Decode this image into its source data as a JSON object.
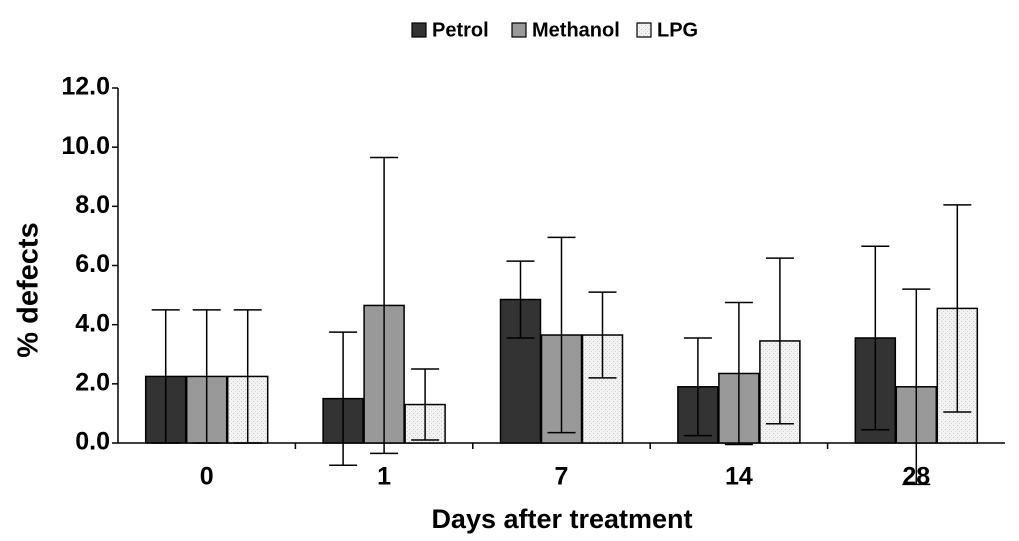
{
  "chart_data": {
    "type": "bar",
    "x_label": "Days after treatment",
    "y_label": "% defects",
    "categories": [
      "0",
      "1",
      "7",
      "14",
      "28"
    ],
    "series": [
      {
        "name": "Petrol",
        "color": "#333333",
        "values": [
          2.25,
          1.5,
          4.85,
          1.9,
          3.55
        ],
        "errors": [
          2.25,
          2.25,
          1.3,
          1.65,
          3.1
        ]
      },
      {
        "name": "Methanol",
        "color": "#999999",
        "values": [
          2.25,
          4.65,
          3.65,
          2.35,
          1.9
        ],
        "errors": [
          2.25,
          5.0,
          3.3,
          2.4,
          3.3
        ]
      },
      {
        "name": "LPG",
        "color": "#eeeeee",
        "values": [
          2.25,
          1.3,
          3.65,
          3.45,
          4.55
        ],
        "errors": [
          2.25,
          1.2,
          1.45,
          2.8,
          3.5
        ]
      }
    ],
    "ylim": [
      0,
      12
    ],
    "yticks": [
      {
        "value": 0,
        "label": "0.0"
      },
      {
        "value": 2,
        "label": "2.0"
      },
      {
        "value": 4,
        "label": "4.0"
      },
      {
        "value": 6,
        "label": "6.0"
      },
      {
        "value": 8,
        "label": "8.0"
      },
      {
        "value": 10,
        "label": "10.0"
      },
      {
        "value": 12,
        "label": "12.0"
      }
    ],
    "legend": "top",
    "grid": false
  }
}
